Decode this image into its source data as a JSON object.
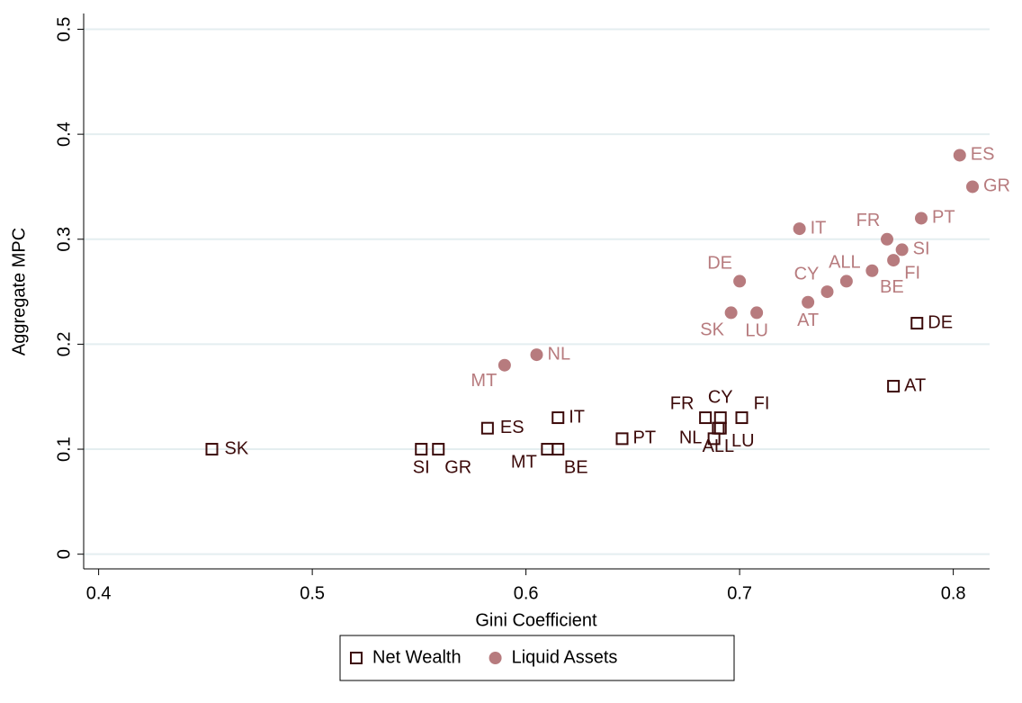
{
  "chart_data": {
    "type": "scatter",
    "xlabel": "Gini Coefficient",
    "ylabel": "Aggregate MPC",
    "xlim": [
      0.393,
      0.817
    ],
    "ylim": [
      -0.014,
      0.515
    ],
    "xticks": [
      0.4,
      0.5,
      0.6,
      0.7,
      0.8
    ],
    "yticks": [
      0,
      0.1,
      0.2,
      0.3,
      0.4,
      0.5
    ],
    "grid": true,
    "legend": "bottom",
    "series": [
      {
        "name": "Net Wealth",
        "color": "#3c0a0a",
        "marker": "square",
        "labels": [
          "SK",
          "SI",
          "GR",
          "ES",
          "IT",
          "MT",
          "BE",
          "PT",
          "FR",
          "CY",
          "NL",
          "ALL",
          "LU",
          "FI",
          "DE",
          "AT"
        ],
        "x": [
          0.453,
          0.551,
          0.559,
          0.582,
          0.615,
          0.61,
          0.615,
          0.645,
          0.684,
          0.691,
          0.688,
          0.69,
          0.691,
          0.701,
          0.783,
          0.772
        ],
        "values": [
          0.1,
          0.1,
          0.1,
          0.12,
          0.13,
          0.1,
          0.1,
          0.11,
          0.13,
          0.13,
          0.11,
          0.12,
          0.12,
          0.13,
          0.22,
          0.16
        ]
      },
      {
        "name": "Liquid Assets",
        "color": "#b77b7e",
        "marker": "circle",
        "labels": [
          "MT",
          "NL",
          "SK",
          "DE",
          "LU",
          "IT",
          "AT",
          "CY",
          "ALL",
          "BE",
          "FR",
          "FI",
          "SI",
          "PT",
          "ES",
          "GR"
        ],
        "x": [
          0.59,
          0.605,
          0.696,
          0.7,
          0.708,
          0.728,
          0.732,
          0.741,
          0.75,
          0.762,
          0.769,
          0.772,
          0.776,
          0.785,
          0.803,
          0.809
        ],
        "values": [
          0.18,
          0.19,
          0.23,
          0.26,
          0.23,
          0.31,
          0.24,
          0.25,
          0.26,
          0.27,
          0.3,
          0.28,
          0.29,
          0.32,
          0.38,
          0.35
        ]
      }
    ]
  }
}
